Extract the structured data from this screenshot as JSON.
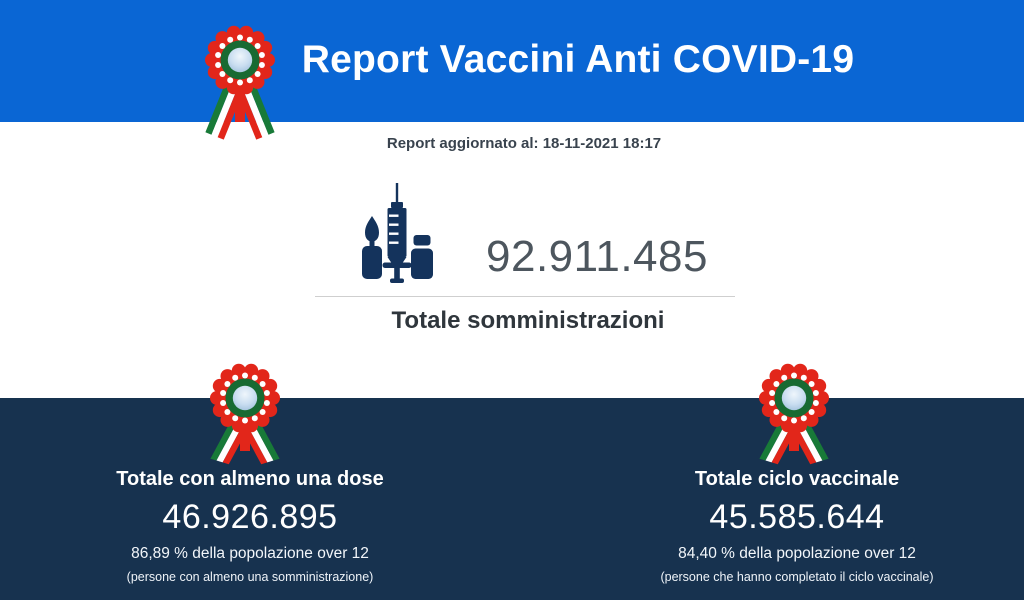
{
  "header": {
    "title": "Report Vaccini Anti COVID-19"
  },
  "updated": {
    "label": "Report aggiornato al: 18-11-2021 18:17"
  },
  "total": {
    "value": "92.911.485",
    "label": "Totale somministrazioni",
    "icon": "syringe-ampoule-vial-icon"
  },
  "footer": {
    "left": {
      "title": "Totale con almeno una dose",
      "value": "46.926.895",
      "percent_line": "86,89 % della popolazione over 12",
      "note": "(persone con almeno una somministrazione)"
    },
    "right": {
      "title": "Totale ciclo vaccinale",
      "value": "45.585.644",
      "percent_line": "84,40 % della popolazione over 12",
      "note": "(persone che hanno completato il ciclo vaccinale)"
    }
  },
  "icons": {
    "cockade": "italian-cockade-icon",
    "vaccine": "syringe-ampoule-vial-icon"
  },
  "colors": {
    "header_background": "#0a66d4",
    "footer_background": "#17324f",
    "icon_navy": "#14335c",
    "flag_red": "#e2261a",
    "flag_green": "#186a32",
    "number_gray": "#4d565e"
  }
}
